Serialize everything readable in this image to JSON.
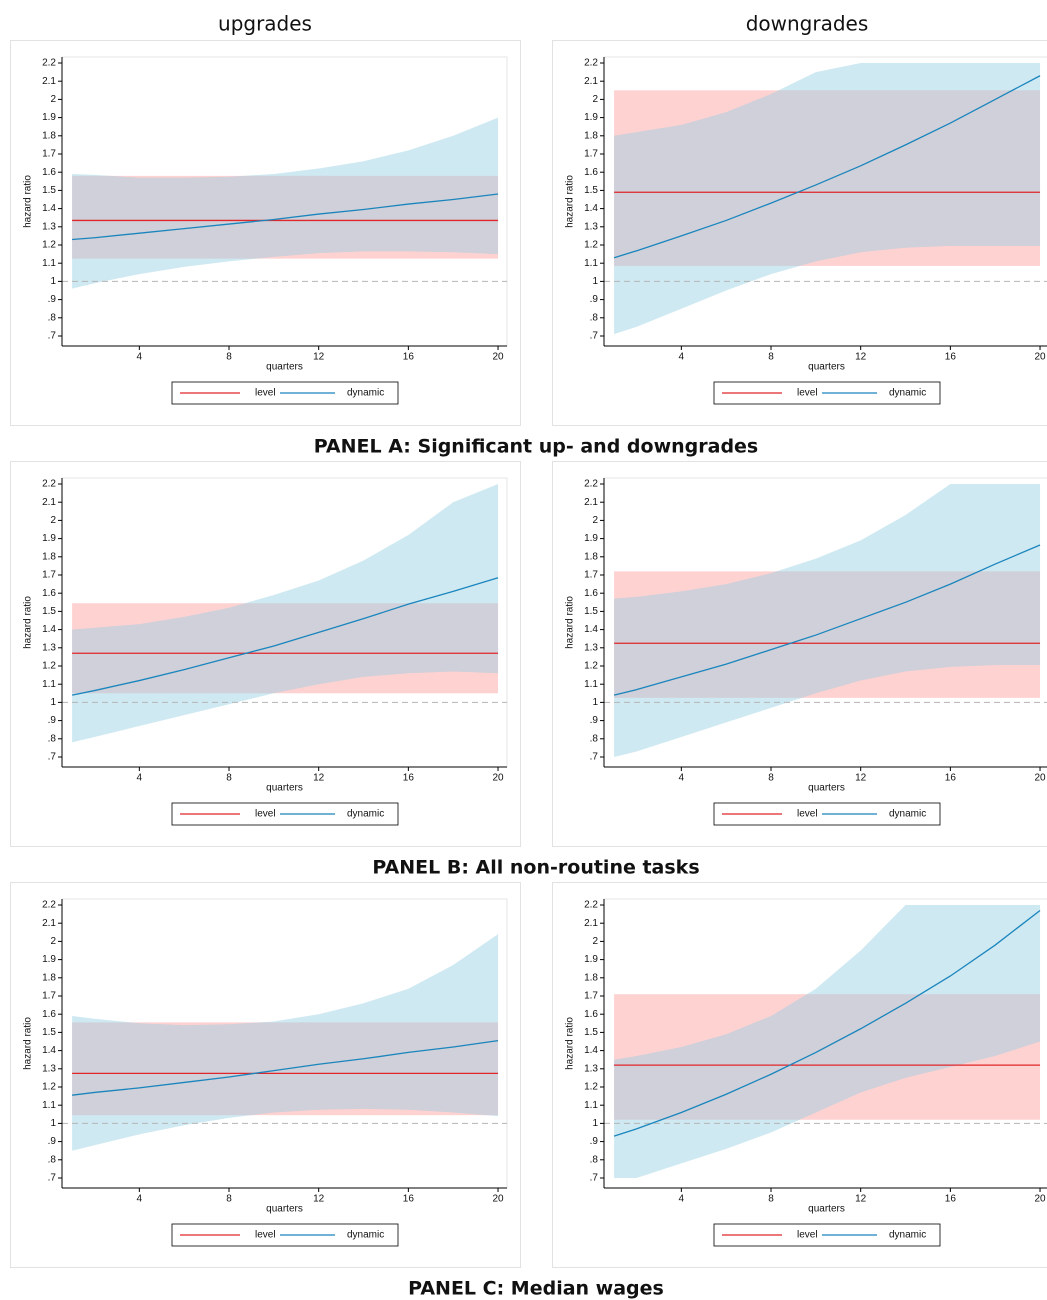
{
  "column_titles": [
    "upgrades",
    "downgrades"
  ],
  "panel_titles": [
    "PANEL A: Significant up- and downgrades",
    "PANEL B: All non-routine tasks",
    "PANEL C: Median wages"
  ],
  "chart_data": [
    {
      "type": "line",
      "xlabel": "quarters",
      "ylabel": "hazard ratio",
      "x": [
        1,
        2,
        4,
        6,
        8,
        10,
        12,
        14,
        16,
        18,
        20
      ],
      "xlim": [
        0.55,
        20.4
      ],
      "xticks": [
        4,
        8,
        12,
        16,
        20
      ],
      "ylim": [
        0.645,
        2.233
      ],
      "yticks": [
        {
          "value": 0.7,
          "label": ".7"
        },
        {
          "value": 0.8,
          "label": ".8"
        },
        {
          "value": 0.9,
          "label": ".9"
        },
        1,
        1.1,
        1.2,
        1.3,
        1.4,
        1.5,
        1.6,
        1.7,
        1.8,
        1.9,
        2,
        2.1,
        2.2
      ],
      "refline": 1,
      "legend": "bottom",
      "series": [
        {
          "name": "level",
          "color": "#e0262b",
          "band_color": "#ff9c9c",
          "value": 1.335,
          "ci": [
            1.125,
            1.58
          ]
        },
        {
          "name": "dynamic",
          "color": "#1a85bd",
          "band_color": "#94cfe3",
          "values": [
            1.23,
            1.24,
            1.265,
            1.29,
            1.315,
            1.34,
            1.37,
            1.395,
            1.425,
            1.45,
            1.48
          ],
          "lower": [
            0.96,
            0.99,
            1.04,
            1.08,
            1.11,
            1.135,
            1.155,
            1.165,
            1.165,
            1.16,
            1.15
          ],
          "upper": [
            1.59,
            1.585,
            1.57,
            1.57,
            1.575,
            1.59,
            1.62,
            1.66,
            1.72,
            1.8,
            1.9
          ]
        }
      ]
    },
    {
      "type": "line",
      "xlabel": "quarters",
      "ylabel": "hazard ratio",
      "x": [
        1,
        2,
        4,
        6,
        8,
        10,
        12,
        14,
        16,
        18,
        20
      ],
      "xlim": [
        0.55,
        20.4
      ],
      "xticks": [
        4,
        8,
        12,
        16,
        20
      ],
      "ylim": [
        0.645,
        2.233
      ],
      "yticks": [
        {
          "value": 0.7,
          "label": ".7"
        },
        {
          "value": 0.8,
          "label": ".8"
        },
        {
          "value": 0.9,
          "label": ".9"
        },
        1,
        1.1,
        1.2,
        1.3,
        1.4,
        1.5,
        1.6,
        1.7,
        1.8,
        1.9,
        2,
        2.1,
        2.2
      ],
      "refline": 1,
      "legend": "bottom",
      "series": [
        {
          "name": "level",
          "color": "#e0262b",
          "band_color": "#ff9c9c",
          "value": 1.49,
          "ci": [
            1.085,
            2.05
          ]
        },
        {
          "name": "dynamic",
          "color": "#1a85bd",
          "band_color": "#94cfe3",
          "values": [
            1.13,
            1.168,
            1.25,
            1.335,
            1.43,
            1.53,
            1.635,
            1.75,
            1.87,
            2.0,
            2.13
          ],
          "lower": [
            0.71,
            0.75,
            0.85,
            0.95,
            1.04,
            1.11,
            1.16,
            1.185,
            1.195,
            1.195,
            1.195
          ],
          "upper": [
            1.8,
            1.82,
            1.86,
            1.93,
            2.03,
            2.15,
            2.2,
            2.2,
            2.2,
            2.2,
            2.2
          ]
        }
      ]
    },
    {
      "type": "line",
      "xlabel": "quarters",
      "ylabel": "hazard ratio",
      "x": [
        1,
        2,
        4,
        6,
        8,
        10,
        12,
        14,
        16,
        18,
        20
      ],
      "xlim": [
        0.55,
        20.4
      ],
      "xticks": [
        4,
        8,
        12,
        16,
        20
      ],
      "ylim": [
        0.645,
        2.233
      ],
      "yticks": [
        {
          "value": 0.7,
          "label": ".7"
        },
        {
          "value": 0.8,
          "label": ".8"
        },
        {
          "value": 0.9,
          "label": ".9"
        },
        1,
        1.1,
        1.2,
        1.3,
        1.4,
        1.5,
        1.6,
        1.7,
        1.8,
        1.9,
        2,
        2.1,
        2.2
      ],
      "refline": 1,
      "legend": "bottom",
      "series": [
        {
          "name": "level",
          "color": "#e0262b",
          "band_color": "#ff9c9c",
          "value": 1.27,
          "ci": [
            1.05,
            1.545
          ]
        },
        {
          "name": "dynamic",
          "color": "#1a85bd",
          "band_color": "#94cfe3",
          "values": [
            1.04,
            1.065,
            1.12,
            1.18,
            1.245,
            1.31,
            1.385,
            1.46,
            1.54,
            1.61,
            1.685
          ],
          "lower": [
            0.78,
            0.81,
            0.87,
            0.93,
            0.99,
            1.05,
            1.1,
            1.14,
            1.16,
            1.17,
            1.16
          ],
          "upper": [
            1.4,
            1.41,
            1.43,
            1.47,
            1.52,
            1.59,
            1.67,
            1.78,
            1.92,
            2.1,
            2.2
          ]
        }
      ]
    },
    {
      "type": "line",
      "xlabel": "quarters",
      "ylabel": "hazard ratio",
      "x": [
        1,
        2,
        4,
        6,
        8,
        10,
        12,
        14,
        16,
        18,
        20
      ],
      "xlim": [
        0.55,
        20.4
      ],
      "xticks": [
        4,
        8,
        12,
        16,
        20
      ],
      "ylim": [
        0.645,
        2.233
      ],
      "yticks": [
        {
          "value": 0.7,
          "label": ".7"
        },
        {
          "value": 0.8,
          "label": ".8"
        },
        {
          "value": 0.9,
          "label": ".9"
        },
        1,
        1.1,
        1.2,
        1.3,
        1.4,
        1.5,
        1.6,
        1.7,
        1.8,
        1.9,
        2,
        2.1,
        2.2
      ],
      "refline": 1,
      "legend": "bottom",
      "series": [
        {
          "name": "level",
          "color": "#e0262b",
          "band_color": "#ff9c9c",
          "value": 1.325,
          "ci": [
            1.025,
            1.72
          ]
        },
        {
          "name": "dynamic",
          "color": "#1a85bd",
          "band_color": "#94cfe3",
          "values": [
            1.04,
            1.07,
            1.14,
            1.21,
            1.29,
            1.37,
            1.46,
            1.55,
            1.65,
            1.76,
            1.865
          ],
          "lower": [
            0.7,
            0.73,
            0.81,
            0.89,
            0.97,
            1.05,
            1.12,
            1.17,
            1.195,
            1.205,
            1.205
          ],
          "upper": [
            1.57,
            1.58,
            1.61,
            1.65,
            1.71,
            1.79,
            1.89,
            2.03,
            2.2,
            2.2,
            2.2
          ]
        }
      ]
    },
    {
      "type": "line",
      "xlabel": "quarters",
      "ylabel": "hazard ratio",
      "x": [
        1,
        2,
        4,
        6,
        8,
        10,
        12,
        14,
        16,
        18,
        20
      ],
      "xlim": [
        0.55,
        20.4
      ],
      "xticks": [
        4,
        8,
        12,
        16,
        20
      ],
      "ylim": [
        0.645,
        2.233
      ],
      "yticks": [
        {
          "value": 0.7,
          "label": ".7"
        },
        {
          "value": 0.8,
          "label": ".8"
        },
        {
          "value": 0.9,
          "label": ".9"
        },
        1,
        1.1,
        1.2,
        1.3,
        1.4,
        1.5,
        1.6,
        1.7,
        1.8,
        1.9,
        2,
        2.1,
        2.2
      ],
      "refline": 1,
      "legend": "bottom",
      "series": [
        {
          "name": "level",
          "color": "#e0262b",
          "band_color": "#ff9c9c",
          "value": 1.275,
          "ci": [
            1.045,
            1.555
          ]
        },
        {
          "name": "dynamic",
          "color": "#1a85bd",
          "band_color": "#94cfe3",
          "values": [
            1.155,
            1.17,
            1.195,
            1.225,
            1.255,
            1.29,
            1.325,
            1.355,
            1.39,
            1.42,
            1.455
          ],
          "lower": [
            0.85,
            0.88,
            0.94,
            0.99,
            1.03,
            1.06,
            1.075,
            1.08,
            1.075,
            1.06,
            1.04
          ],
          "upper": [
            1.59,
            1.575,
            1.55,
            1.54,
            1.545,
            1.56,
            1.6,
            1.66,
            1.74,
            1.87,
            2.04
          ]
        }
      ]
    },
    {
      "type": "line",
      "xlabel": "quarters",
      "ylabel": "hazard ratio",
      "x": [
        1,
        2,
        4,
        6,
        8,
        10,
        12,
        14,
        16,
        18,
        20
      ],
      "xlim": [
        0.55,
        20.4
      ],
      "xticks": [
        4,
        8,
        12,
        16,
        20
      ],
      "ylim": [
        0.645,
        2.233
      ],
      "yticks": [
        {
          "value": 0.7,
          "label": ".7"
        },
        {
          "value": 0.8,
          "label": ".8"
        },
        {
          "value": 0.9,
          "label": ".9"
        },
        1,
        1.1,
        1.2,
        1.3,
        1.4,
        1.5,
        1.6,
        1.7,
        1.8,
        1.9,
        2,
        2.1,
        2.2
      ],
      "refline": 1,
      "legend": "bottom",
      "series": [
        {
          "name": "level",
          "color": "#e0262b",
          "band_color": "#ff9c9c",
          "value": 1.32,
          "ci": [
            1.02,
            1.71
          ]
        },
        {
          "name": "dynamic",
          "color": "#1a85bd",
          "band_color": "#94cfe3",
          "values": [
            0.93,
            0.97,
            1.06,
            1.16,
            1.27,
            1.39,
            1.52,
            1.66,
            1.81,
            1.98,
            2.17
          ],
          "lower": [
            0.7,
            0.7,
            0.78,
            0.86,
            0.95,
            1.06,
            1.17,
            1.25,
            1.31,
            1.37,
            1.45
          ],
          "upper": [
            1.35,
            1.37,
            1.42,
            1.49,
            1.59,
            1.74,
            1.95,
            2.2,
            2.2,
            2.2,
            2.2
          ]
        }
      ]
    }
  ]
}
